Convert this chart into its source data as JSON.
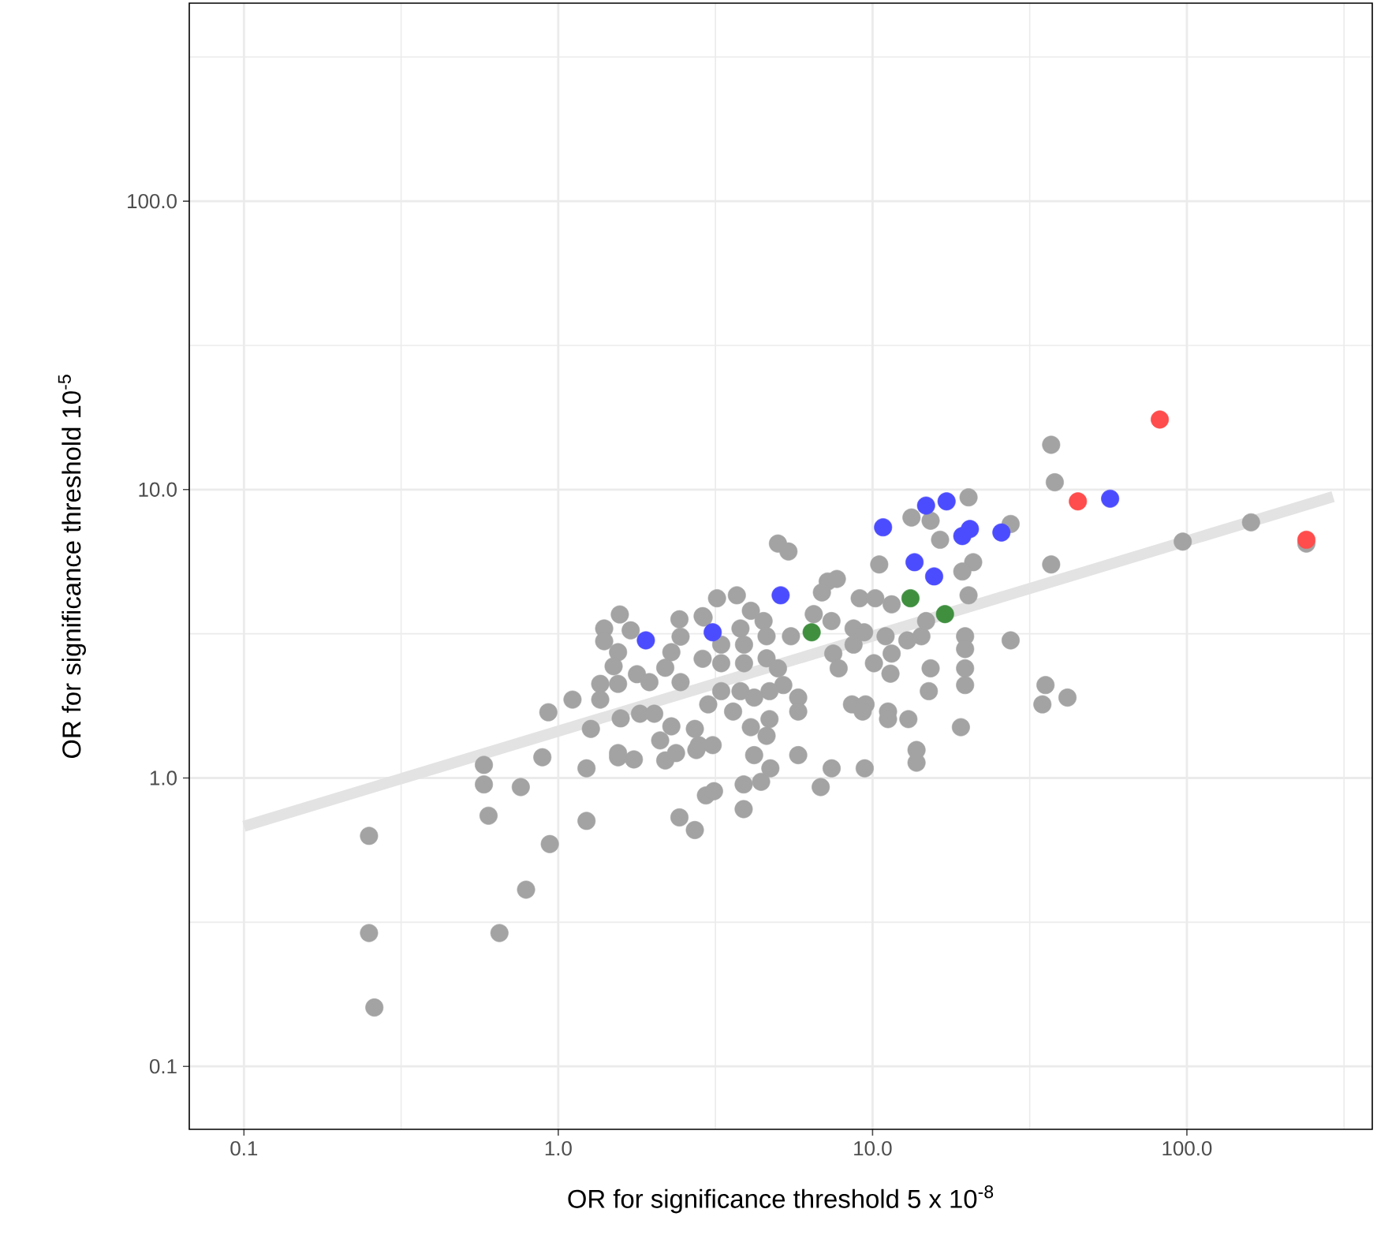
{
  "chart_data": {
    "type": "scatter",
    "xlabel": "OR for significance threshold 5 x 10$^{-8}$",
    "ylabel": "OR for significance threshold 10$^{-5}$",
    "log": "xy",
    "grid": true,
    "xlim": [
      0.067,
      389
    ],
    "ylim": [
      0.0605,
      486
    ],
    "xticks": [
      {
        "value": 0.1,
        "label": "0.1"
      },
      {
        "value": 1,
        "label": "1.0"
      },
      {
        "value": 10,
        "label": "10.0"
      },
      {
        "value": 100,
        "label": "100.0"
      }
    ],
    "yticks": [
      {
        "value": 0.1,
        "label": "0.1"
      },
      {
        "value": 1,
        "label": "1.0"
      },
      {
        "value": 10,
        "label": "10.0"
      },
      {
        "value": 100,
        "label": "100.0"
      }
    ],
    "series": [
      {
        "type": "line",
        "marker": "none",
        "color": "#e3e3e3",
        "x": [
          0.1,
          292
        ],
        "values": [
          0.68,
          9.45
        ]
      },
      {
        "marker": "circle",
        "color": "#a3a3a3",
        "x": [
          0.25,
          0.25,
          0.26,
          0.58,
          0.58,
          0.6,
          0.76,
          0.79,
          0.65,
          0.94,
          1.23,
          1.23,
          2.43,
          2.72,
          2.95,
          3.13,
          3.89,
          3.89,
          4.42,
          4.73,
          6.84,
          7.41,
          9.44,
          13.8,
          0.89,
          1.55,
          1.74,
          2.19,
          1.57,
          1.4,
          1.4,
          1.7,
          1.55,
          1.5,
          1.36,
          1.55,
          1.78,
          1.95,
          1.82,
          2.02,
          1.58,
          1.36,
          1.27,
          1.11,
          0.93,
          1.55,
          2.11,
          2.37,
          2.75,
          2.72,
          2.29,
          2.45,
          2.19,
          2.43,
          2.88,
          2.45,
          2.29,
          2.88,
          37,
          38,
          20.2,
          13.3,
          15.3,
          16.4,
          27.5,
          20.9,
          19.3,
          37,
          10.5,
          20.2,
          9.1,
          10.2,
          11.5,
          27.5,
          5.0,
          5.4,
          7.2,
          7.7,
          6.9,
          6.5,
          7.4,
          8.7,
          5.5,
          4.1,
          3.7,
          3.2,
          2.9,
          4.5,
          3.8,
          3.9,
          4.6,
          4.6,
          3.3,
          3.3,
          3.9,
          5.0,
          5.2,
          5.8,
          5.8,
          4.7,
          4.2,
          3.8,
          3.3,
          3.0,
          3.6,
          4.1,
          4.7,
          4.6,
          4.2,
          5.8,
          3.1,
          2.8,
          7.5,
          7.8,
          8.7,
          9.4,
          10.1,
          11.0,
          11.5,
          11.4,
          12.9,
          14.3,
          14.8,
          15.3,
          15.1,
          19.7,
          19.7,
          19.7,
          19.7,
          19.1,
          13.8,
          13.0,
          11.2,
          11.2,
          8.6,
          9.5,
          9.3,
          35.5,
          34.7,
          41.7,
          97,
          160,
          240
        ],
        "values": [
          0.63,
          0.29,
          0.16,
          1.11,
          0.95,
          0.74,
          0.93,
          0.41,
          0.29,
          0.59,
          0.71,
          1.08,
          0.73,
          0.66,
          0.87,
          0.9,
          0.95,
          0.78,
          0.97,
          1.08,
          0.93,
          1.08,
          1.08,
          1.13,
          1.18,
          1.18,
          1.16,
          1.15,
          3.69,
          3.3,
          2.98,
          3.25,
          2.73,
          2.44,
          2.12,
          2.12,
          2.29,
          2.15,
          1.67,
          1.67,
          1.61,
          1.87,
          1.48,
          1.87,
          1.69,
          1.22,
          1.35,
          1.22,
          1.25,
          1.48,
          1.51,
          2.15,
          2.41,
          3.55,
          3.64,
          3.09,
          2.73,
          2.59,
          14.3,
          10.6,
          9.4,
          8.0,
          7.8,
          6.7,
          7.6,
          5.6,
          5.2,
          5.5,
          5.5,
          4.3,
          4.2,
          4.2,
          4.0,
          3.0,
          6.5,
          6.1,
          4.8,
          4.9,
          4.4,
          3.7,
          3.5,
          3.3,
          3.1,
          3.8,
          4.3,
          4.2,
          3.6,
          3.5,
          3.3,
          2.9,
          3.1,
          2.6,
          2.9,
          2.5,
          2.5,
          2.4,
          2.1,
          1.9,
          1.7,
          2.0,
          1.9,
          2.0,
          2.0,
          1.8,
          1.7,
          1.5,
          1.6,
          1.4,
          1.2,
          1.2,
          1.3,
          1.3,
          2.7,
          2.4,
          2.9,
          3.2,
          2.5,
          3.1,
          2.7,
          2.3,
          3.0,
          3.1,
          3.5,
          2.4,
          2.0,
          3.1,
          2.8,
          2.4,
          2.1,
          1.5,
          1.25,
          1.6,
          1.7,
          1.6,
          1.8,
          1.8,
          1.7,
          2.1,
          1.8,
          1.9,
          6.6,
          7.7,
          6.5
        ]
      },
      {
        "marker": "circle",
        "color": "#4c4cff",
        "x": [
          1.9,
          3.1,
          5.1,
          10.8,
          14.8,
          17.2,
          19.5,
          20.4,
          19.3,
          25.7,
          13.6,
          15.7,
          57
        ],
        "values": [
          3.0,
          3.2,
          4.3,
          7.4,
          8.8,
          9.1,
          null,
          7.3,
          6.9,
          7.1,
          5.6,
          5.0,
          9.3
        ]
      },
      {
        "marker": "circle",
        "color": "#3f8f3f",
        "x": [
          6.4,
          13.2,
          17.0
        ],
        "values": [
          3.2,
          4.2,
          3.7
        ]
      },
      {
        "marker": "circle",
        "color": "#ff4c4c",
        "x": [
          82,
          45,
          240
        ],
        "values": [
          17.5,
          9.1,
          6.7
        ]
      }
    ]
  }
}
